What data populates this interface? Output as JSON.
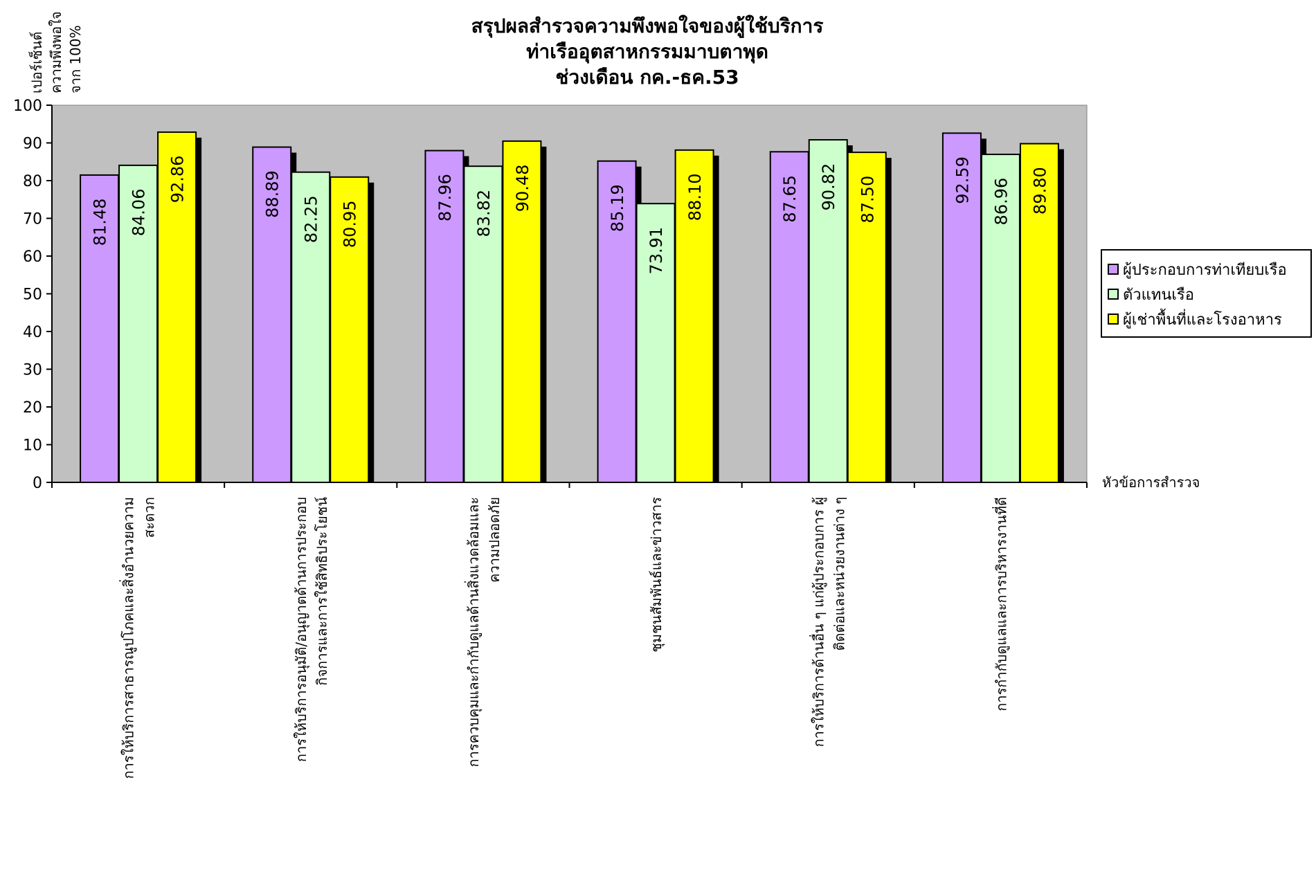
{
  "chart_data": {
    "type": "bar",
    "title": [
      "สรุปผลสำรวจความพึงพอใจของผู้ใช้บริการ",
      "ท่าเรืออุตสาหกรรมมาบตาพุด",
      "ช่วงเดือน กค.-ธค.53"
    ],
    "ylabel": [
      "เปอร์เซ็นต์",
      "ความพึงพอใจ",
      "จาก 100%"
    ],
    "xlabel": "หัวข้อการสำรวจ",
    "ylim": [
      0,
      100
    ],
    "yticks": [
      "0",
      "10",
      "20",
      "30",
      "40",
      "50",
      "60",
      "70",
      "80",
      "90",
      "100"
    ],
    "grid": false,
    "legend_position": "right",
    "plot_background": "#C0C0C0",
    "categories": [
      [
        "การให้บริการสาธารณูปโภคและสิ่งอำนวยความ",
        "สะดวก"
      ],
      [
        "การให้บริการอนุมัติ/อนุญาตด้านการประกอบ",
        "กิจการและการใช้สิทธิประโยชน์"
      ],
      [
        "การควบคุมและกำกับดูแลด้านสิ่งแวดล้อมและ",
        "ความปลอดภัย"
      ],
      [
        "ชุมชนสัมพันธ์และข่าวสาร"
      ],
      [
        "การให้บริการด้านอื่น ๆ แก่ผู้ประกอบการ ผู้",
        "ติดต่อและหน่วยงานต่าง ๆ"
      ],
      [
        "การกำกับดูแลและการบริหารงานที่ดี"
      ]
    ],
    "series": [
      {
        "name": "ผู้ประกอบการท่าเทียบเรือ",
        "color": "#CC99FF",
        "values": [
          81.48,
          88.89,
          87.96,
          85.19,
          87.65,
          92.59
        ],
        "labels": [
          "81.48",
          "88.89",
          "87.96",
          "85.19",
          "87.65",
          "92.59"
        ]
      },
      {
        "name": "ตัวแทนเรือ",
        "color": "#CCFFCC",
        "values": [
          84.06,
          82.25,
          83.82,
          73.91,
          90.82,
          86.96
        ],
        "labels": [
          "84.06",
          "82.25",
          "83.82",
          "73.91",
          "90.82",
          "86.96"
        ]
      },
      {
        "name": "ผู้เช่าพื้นที่และโรงอาหาร",
        "color": "#FFFF00",
        "values": [
          92.86,
          80.95,
          90.48,
          88.1,
          87.5,
          89.8
        ],
        "labels": [
          "92.86",
          "80.95",
          "90.48",
          "88.10",
          "87.50",
          "89.80"
        ]
      }
    ]
  }
}
